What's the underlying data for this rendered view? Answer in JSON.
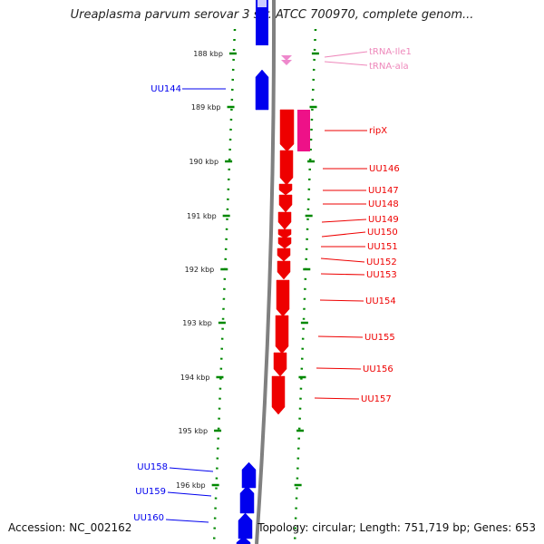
{
  "title": "Ureaplasma parvum serovar 3 str. ATCC 700970, complete genom...",
  "footer": {
    "accession": "Accession: NC_002162",
    "summary": "Topology: circular; Length: 751,719 bp; Genes: 653"
  },
  "colors": {
    "forward_genes": "#0000ee",
    "reverse_genes": "#ee0000",
    "rna_genes": "#ee88cc",
    "rna_label": "#ee88bb",
    "ruler": "#008800",
    "backbone": "#808080"
  },
  "ruler_ticks": [
    "188 kbp",
    "189 kbp",
    "190 kbp",
    "191 kbp",
    "192 kbp",
    "193 kbp",
    "194 kbp",
    "195 kbp",
    "196 kbp"
  ],
  "genes": [
    {
      "name": "UU144",
      "strand": "forward",
      "type": "gene"
    },
    {
      "name": "tRNA-Ile1",
      "strand": "reverse",
      "type": "tRNA"
    },
    {
      "name": "tRNA-ala",
      "strand": "reverse",
      "type": "tRNA"
    },
    {
      "name": "ripX",
      "strand": "reverse",
      "type": "gene"
    },
    {
      "name": "UU146",
      "strand": "reverse",
      "type": "gene"
    },
    {
      "name": "UU147",
      "strand": "reverse",
      "type": "gene"
    },
    {
      "name": "UU148",
      "strand": "reverse",
      "type": "gene"
    },
    {
      "name": "UU149",
      "strand": "reverse",
      "type": "gene"
    },
    {
      "name": "UU150",
      "strand": "reverse",
      "type": "gene"
    },
    {
      "name": "UU151",
      "strand": "reverse",
      "type": "gene"
    },
    {
      "name": "UU152",
      "strand": "reverse",
      "type": "gene"
    },
    {
      "name": "UU153",
      "strand": "reverse",
      "type": "gene"
    },
    {
      "name": "UU154",
      "strand": "reverse",
      "type": "gene"
    },
    {
      "name": "UU155",
      "strand": "reverse",
      "type": "gene"
    },
    {
      "name": "UU156",
      "strand": "reverse",
      "type": "gene"
    },
    {
      "name": "UU157",
      "strand": "reverse",
      "type": "gene"
    },
    {
      "name": "UU158",
      "strand": "forward",
      "type": "gene"
    },
    {
      "name": "UU159",
      "strand": "forward",
      "type": "gene"
    },
    {
      "name": "UU160",
      "strand": "forward",
      "type": "gene"
    }
  ]
}
